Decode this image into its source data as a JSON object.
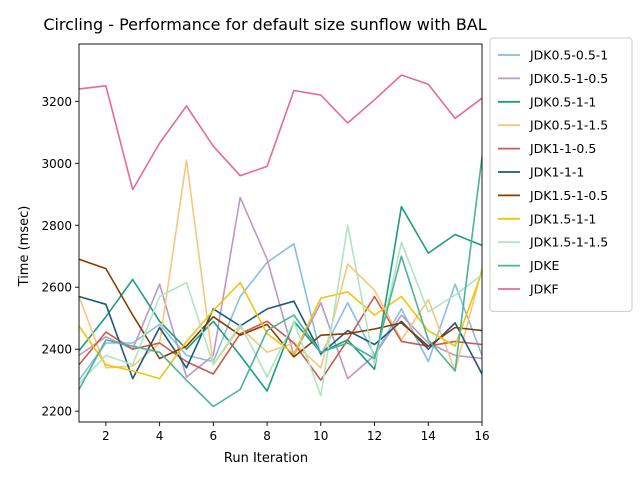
{
  "chart_data": {
    "type": "line",
    "title": "Circling - Performance for default size sunflow with BAL",
    "xlabel": "Run Iteration",
    "ylabel": "Time (msec)",
    "xlim": [
      1,
      16
    ],
    "ylim": [
      2165,
      3385
    ],
    "xticks": [
      2,
      4,
      6,
      8,
      10,
      12,
      14,
      16
    ],
    "yticks": [
      2200,
      2400,
      2600,
      2800,
      3000,
      3200
    ],
    "grid": false,
    "legend_position": "outside-right",
    "x": [
      1,
      2,
      3,
      4,
      5,
      6,
      7,
      8,
      9,
      10,
      11,
      12,
      13,
      14,
      15,
      16
    ],
    "series": [
      {
        "name": "JDK0.5-0.5-1",
        "color": "#88bde6",
        "values": [
          2300,
          2420,
          2420,
          2480,
          2380,
          2360,
          2570,
          2680,
          2740,
          2380,
          2550,
          2380,
          2530,
          2360,
          2610,
          2380
        ]
      },
      {
        "name": "JDK0.5-1-0.5",
        "color": "#bc99c7",
        "values": [
          2380,
          2440,
          2400,
          2610,
          2310,
          2380,
          2890,
          2690,
          2380,
          2550,
          2305,
          2380,
          2510,
          2420,
          2380,
          2370
        ]
      },
      {
        "name": "JDK0.5-1-1",
        "color": "#1a9e7f",
        "values": [
          2395,
          2505,
          2625,
          2490,
          2400,
          2490,
          2380,
          2265,
          2490,
          2390,
          2430,
          2335,
          2860,
          2710,
          2770,
          2735
        ]
      },
      {
        "name": "JDK0.5-1-1.5",
        "color": "#f6c77b",
        "values": [
          2570,
          2340,
          2345,
          2420,
          3010,
          2350,
          2470,
          2390,
          2420,
          2340,
          2675,
          2590,
          2430,
          2560,
          2330,
          2660
        ]
      },
      {
        "name": "JDK1-1-0.5",
        "color": "#cd5a4c",
        "values": [
          2350,
          2455,
          2400,
          2420,
          2360,
          2320,
          2450,
          2490,
          2420,
          2300,
          2430,
          2570,
          2425,
          2410,
          2425,
          2415
        ]
      },
      {
        "name": "JDK1-1-1",
        "color": "#1a5a7d",
        "values": [
          2570,
          2545,
          2305,
          2470,
          2340,
          2530,
          2475,
          2530,
          2555,
          2385,
          2460,
          2415,
          2490,
          2400,
          2485,
          2320
        ]
      },
      {
        "name": "JDK1.5-1-0.5",
        "color": "#863d00",
        "values": [
          2690,
          2660,
          2510,
          2370,
          2410,
          2505,
          2445,
          2480,
          2375,
          2445,
          2450,
          2465,
          2485,
          2410,
          2470,
          2460
        ]
      },
      {
        "name": "JDK1.5-1-1",
        "color": "#f1c40f",
        "values": [
          2475,
          2350,
          2330,
          2305,
          2425,
          2525,
          2615,
          2450,
          2385,
          2565,
          2585,
          2510,
          2570,
          2460,
          2410,
          2650
        ]
      },
      {
        "name": "JDK1.5-1-1.5",
        "color": "#aee6bf",
        "values": [
          2290,
          2380,
          2350,
          2570,
          2615,
          2350,
          2480,
          2310,
          2490,
          2250,
          2800,
          2350,
          2745,
          2520,
          2575,
          2640
        ]
      },
      {
        "name": "JDKE",
        "color": "#4ab49a",
        "values": [
          2270,
          2430,
          2410,
          2390,
          2300,
          2215,
          2270,
          2460,
          2510,
          2390,
          2420,
          2370,
          2700,
          2430,
          2330,
          3020
        ]
      },
      {
        "name": "JDKF",
        "color": "#e66b8f",
        "values": [
          3240,
          3250,
          2915,
          3065,
          3185,
          3055,
          2960,
          2990,
          3235,
          3220,
          3130,
          3205,
          3285,
          3255,
          3145,
          3210
        ]
      }
    ]
  }
}
